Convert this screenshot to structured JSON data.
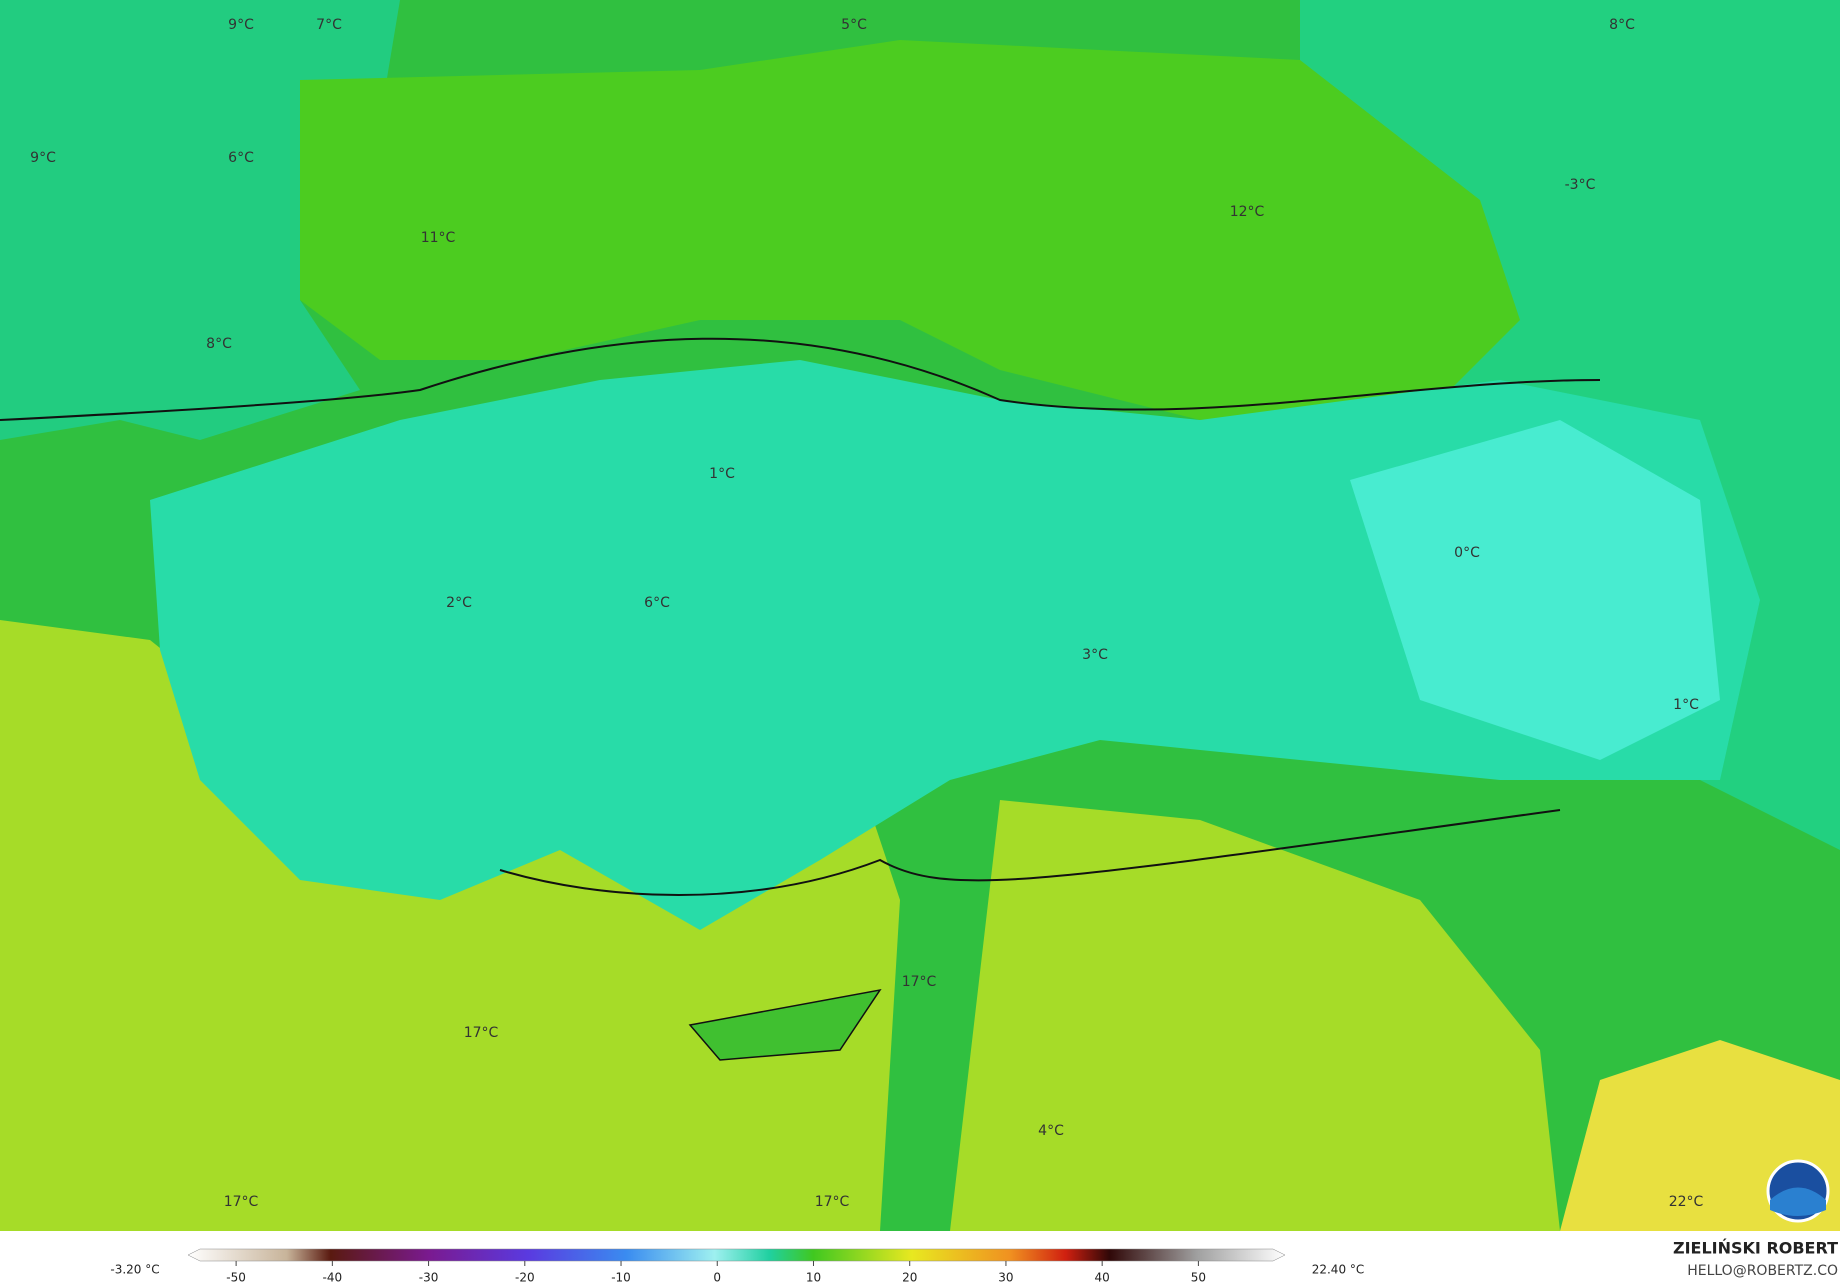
{
  "map": {
    "labels": [
      "9°C",
      "7°C",
      "5°C",
      "8°C",
      "9°C",
      "6°C",
      "11°C",
      "12°C",
      "-3°C",
      "8°C",
      "1°C",
      "0°C",
      "2°C",
      "6°C",
      "3°C",
      "1°C",
      "17°C",
      "17°C",
      "17°C",
      "17°C",
      "4°C",
      "22°C"
    ]
  },
  "colorbar": {
    "min_label": "-3.20 °C",
    "max_label": "22.40 °C",
    "lim": [
      -55,
      59
    ],
    "ticks": [
      -50,
      -40,
      -30,
      -20,
      -10,
      0,
      10,
      20,
      30,
      40,
      50
    ]
  },
  "credit": {
    "author": "ZIELIŃSKI ROBERT",
    "email": "HELLO@ROBERTZ.CO"
  }
}
